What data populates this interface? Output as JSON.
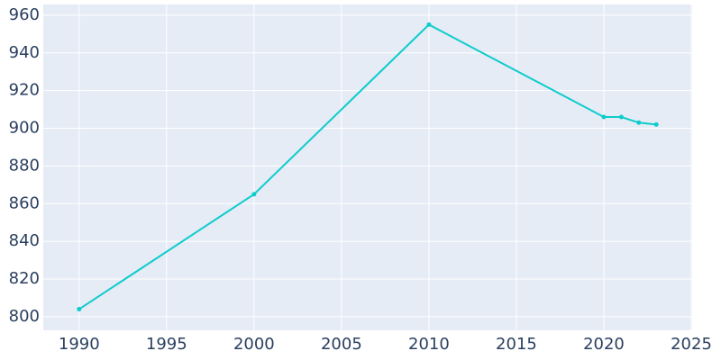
{
  "chart_data": {
    "type": "line",
    "x": [
      1990,
      2000,
      2010,
      2020,
      2021,
      2022,
      2023
    ],
    "series": [
      {
        "color": "#0fcccc",
        "values": [
          804,
          865,
          955,
          906,
          906,
          903,
          902
        ]
      }
    ],
    "xlim": [
      1987.95,
      2025.05
    ],
    "xticks": [
      1990,
      1995,
      2000,
      2005,
      2010,
      2015,
      2020,
      2025
    ],
    "ylim": [
      792.8,
      965.7
    ],
    "yticks": [
      800,
      820,
      840,
      860,
      880,
      900,
      920,
      940,
      960
    ],
    "grid": true
  }
}
